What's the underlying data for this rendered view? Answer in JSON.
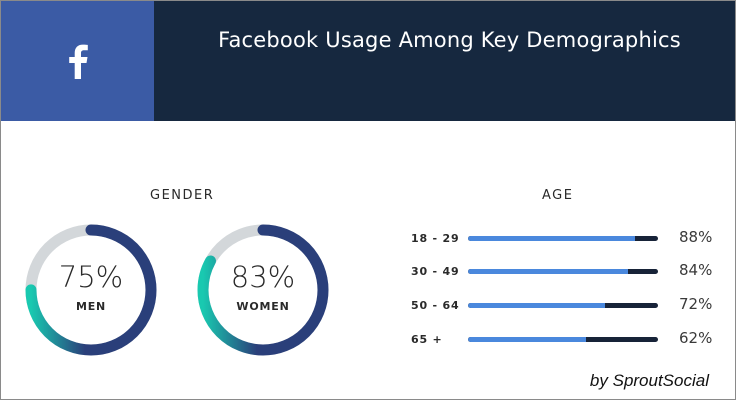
{
  "header": {
    "title": "Facebook Usage Among Key Demographics",
    "logo_icon": "facebook-f-icon",
    "logo_bg": "#3b5ba5",
    "title_bg": "#16283f"
  },
  "gender": {
    "label": "GENDER",
    "items": [
      {
        "pct_text": "75%",
        "label": "MEN"
      },
      {
        "pct_text": "83%",
        "label": "WOMEN"
      }
    ]
  },
  "age": {
    "label": "AGE",
    "rows": [
      {
        "cat": "18 - 29",
        "val_text": "88%"
      },
      {
        "cat": "30 - 49",
        "val_text": "84%"
      },
      {
        "cat": "50 - 64",
        "val_text": "72%"
      },
      {
        "cat": "65 +",
        "val_text": "62%"
      }
    ]
  },
  "credit": "by SproutSocial",
  "colors": {
    "ring_track": "#d3d7da",
    "ring_teal": "#19c9b0",
    "ring_navy": "#2a3f7a",
    "bar_fill": "#4a88dd",
    "bar_track": "#172338"
  },
  "chart_data": [
    {
      "type": "pie",
      "title": "GENDER",
      "categories": [
        "MEN",
        "WOMEN"
      ],
      "values": [
        75,
        83
      ],
      "unit": "%"
    },
    {
      "type": "bar",
      "title": "AGE",
      "categories": [
        "18 - 29",
        "30 - 49",
        "50 - 64",
        "65 +"
      ],
      "values": [
        88,
        84,
        72,
        62
      ],
      "unit": "%",
      "ylim": [
        0,
        100
      ]
    }
  ]
}
